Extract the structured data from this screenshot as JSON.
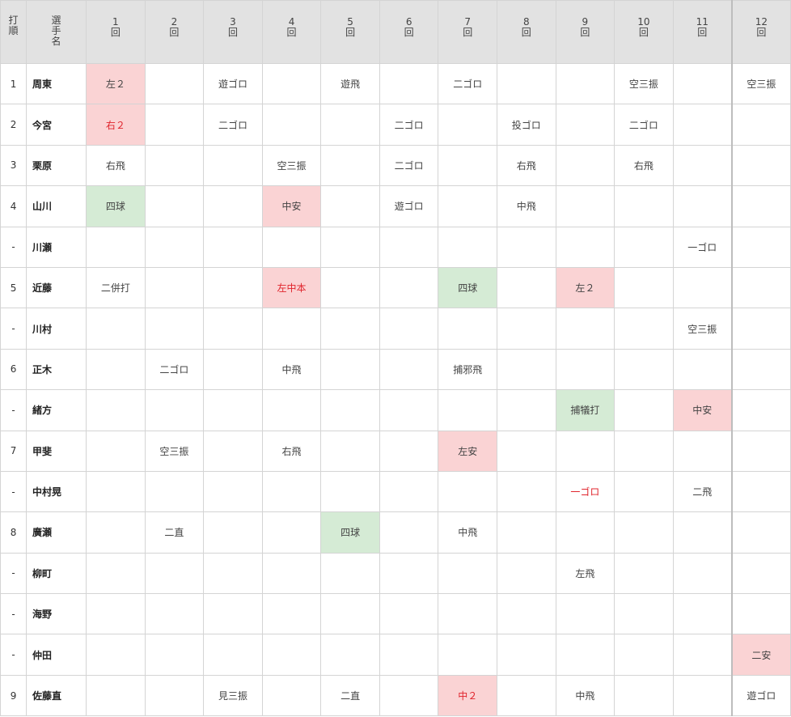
{
  "header": {
    "order_label": "打\n順",
    "name_label": "選\n手\n名",
    "innings": [
      "1\n回",
      "2\n回",
      "3\n回",
      "4\n回",
      "5\n回",
      "6\n回",
      "7\n回",
      "8\n回",
      "9\n回",
      "10\n回",
      "11\n回",
      "12\n回"
    ]
  },
  "colors": {
    "hit_bg": "#fad3d4",
    "walk_bg": "#d5ebd5",
    "run_text": "#e0242c",
    "header_bg": "#e2e2e2"
  },
  "rows": [
    {
      "order": "1",
      "name": "周東",
      "results": [
        "左２",
        "",
        "遊ゴロ",
        "",
        "遊飛",
        "",
        "二ゴロ",
        "",
        "",
        "空三振",
        "",
        "空三振"
      ],
      "styles": [
        "hit",
        "",
        "",
        "",
        "",
        "",
        "",
        "",
        "",
        "",
        "",
        ""
      ]
    },
    {
      "order": "2",
      "name": "今宮",
      "results": [
        "右２",
        "",
        "二ゴロ",
        "",
        "",
        "二ゴロ",
        "",
        "投ゴロ",
        "",
        "二ゴロ",
        "",
        ""
      ],
      "styles": [
        "hit red",
        "",
        "",
        "",
        "",
        "",
        "",
        "",
        "",
        "",
        "",
        ""
      ]
    },
    {
      "order": "3",
      "name": "栗原",
      "results": [
        "右飛",
        "",
        "",
        "空三振",
        "",
        "二ゴロ",
        "",
        "右飛",
        "",
        "右飛",
        "",
        ""
      ],
      "styles": [
        "",
        "",
        "",
        "",
        "",
        "",
        "",
        "",
        "",
        "",
        "",
        ""
      ]
    },
    {
      "order": "4",
      "name": "山川",
      "results": [
        "四球",
        "",
        "",
        "中安",
        "",
        "遊ゴロ",
        "",
        "中飛",
        "",
        "",
        "",
        ""
      ],
      "styles": [
        "walk",
        "",
        "",
        "hit",
        "",
        "",
        "",
        "",
        "",
        "",
        "",
        ""
      ]
    },
    {
      "order": "-",
      "name": "川瀬",
      "results": [
        "",
        "",
        "",
        "",
        "",
        "",
        "",
        "",
        "",
        "",
        "一ゴロ",
        ""
      ],
      "styles": [
        "",
        "",
        "",
        "",
        "",
        "",
        "",
        "",
        "",
        "",
        "",
        ""
      ]
    },
    {
      "order": "5",
      "name": "近藤",
      "results": [
        "二併打",
        "",
        "",
        "左中本",
        "",
        "",
        "四球",
        "",
        "左２",
        "",
        "",
        ""
      ],
      "styles": [
        "",
        "",
        "",
        "hit red",
        "",
        "",
        "walk",
        "",
        "hit",
        "",
        "",
        ""
      ]
    },
    {
      "order": "-",
      "name": "川村",
      "results": [
        "",
        "",
        "",
        "",
        "",
        "",
        "",
        "",
        "",
        "",
        "空三振",
        ""
      ],
      "styles": [
        "",
        "",
        "",
        "",
        "",
        "",
        "",
        "",
        "",
        "",
        "",
        ""
      ]
    },
    {
      "order": "6",
      "name": "正木",
      "results": [
        "",
        "二ゴロ",
        "",
        "中飛",
        "",
        "",
        "捕邪飛",
        "",
        "",
        "",
        "",
        ""
      ],
      "styles": [
        "",
        "",
        "",
        "",
        "",
        "",
        "",
        "",
        "",
        "",
        "",
        ""
      ]
    },
    {
      "order": "-",
      "name": "緒方",
      "results": [
        "",
        "",
        "",
        "",
        "",
        "",
        "",
        "",
        "捕犠打",
        "",
        "中安",
        ""
      ],
      "styles": [
        "",
        "",
        "",
        "",
        "",
        "",
        "",
        "",
        "walk",
        "",
        "hit",
        ""
      ]
    },
    {
      "order": "7",
      "name": "甲斐",
      "results": [
        "",
        "空三振",
        "",
        "右飛",
        "",
        "",
        "左安",
        "",
        "",
        "",
        "",
        ""
      ],
      "styles": [
        "",
        "",
        "",
        "",
        "",
        "",
        "hit",
        "",
        "",
        "",
        "",
        ""
      ]
    },
    {
      "order": "-",
      "name": "中村晃",
      "results": [
        "",
        "",
        "",
        "",
        "",
        "",
        "",
        "",
        "一ゴロ",
        "",
        "二飛",
        ""
      ],
      "styles": [
        "",
        "",
        "",
        "",
        "",
        "",
        "",
        "",
        "red",
        "",
        "",
        ""
      ]
    },
    {
      "order": "8",
      "name": "廣瀬",
      "results": [
        "",
        "二直",
        "",
        "",
        "四球",
        "",
        "中飛",
        "",
        "",
        "",
        "",
        ""
      ],
      "styles": [
        "",
        "",
        "",
        "",
        "walk",
        "",
        "",
        "",
        "",
        "",
        "",
        ""
      ]
    },
    {
      "order": "-",
      "name": "柳町",
      "results": [
        "",
        "",
        "",
        "",
        "",
        "",
        "",
        "",
        "左飛",
        "",
        "",
        ""
      ],
      "styles": [
        "",
        "",
        "",
        "",
        "",
        "",
        "",
        "",
        "",
        "",
        "",
        ""
      ]
    },
    {
      "order": "-",
      "name": "海野",
      "results": [
        "",
        "",
        "",
        "",
        "",
        "",
        "",
        "",
        "",
        "",
        "",
        ""
      ],
      "styles": [
        "",
        "",
        "",
        "",
        "",
        "",
        "",
        "",
        "",
        "",
        "",
        ""
      ]
    },
    {
      "order": "-",
      "name": "仲田",
      "results": [
        "",
        "",
        "",
        "",
        "",
        "",
        "",
        "",
        "",
        "",
        "",
        "二安"
      ],
      "styles": [
        "",
        "",
        "",
        "",
        "",
        "",
        "",
        "",
        "",
        "",
        "",
        "hit"
      ]
    },
    {
      "order": "9",
      "name": "佐藤直",
      "results": [
        "",
        "",
        "見三振",
        "",
        "二直",
        "",
        "中２",
        "",
        "中飛",
        "",
        "",
        "遊ゴロ"
      ],
      "styles": [
        "",
        "",
        "",
        "",
        "",
        "",
        "hit red",
        "",
        "",
        "",
        "",
        ""
      ]
    }
  ]
}
